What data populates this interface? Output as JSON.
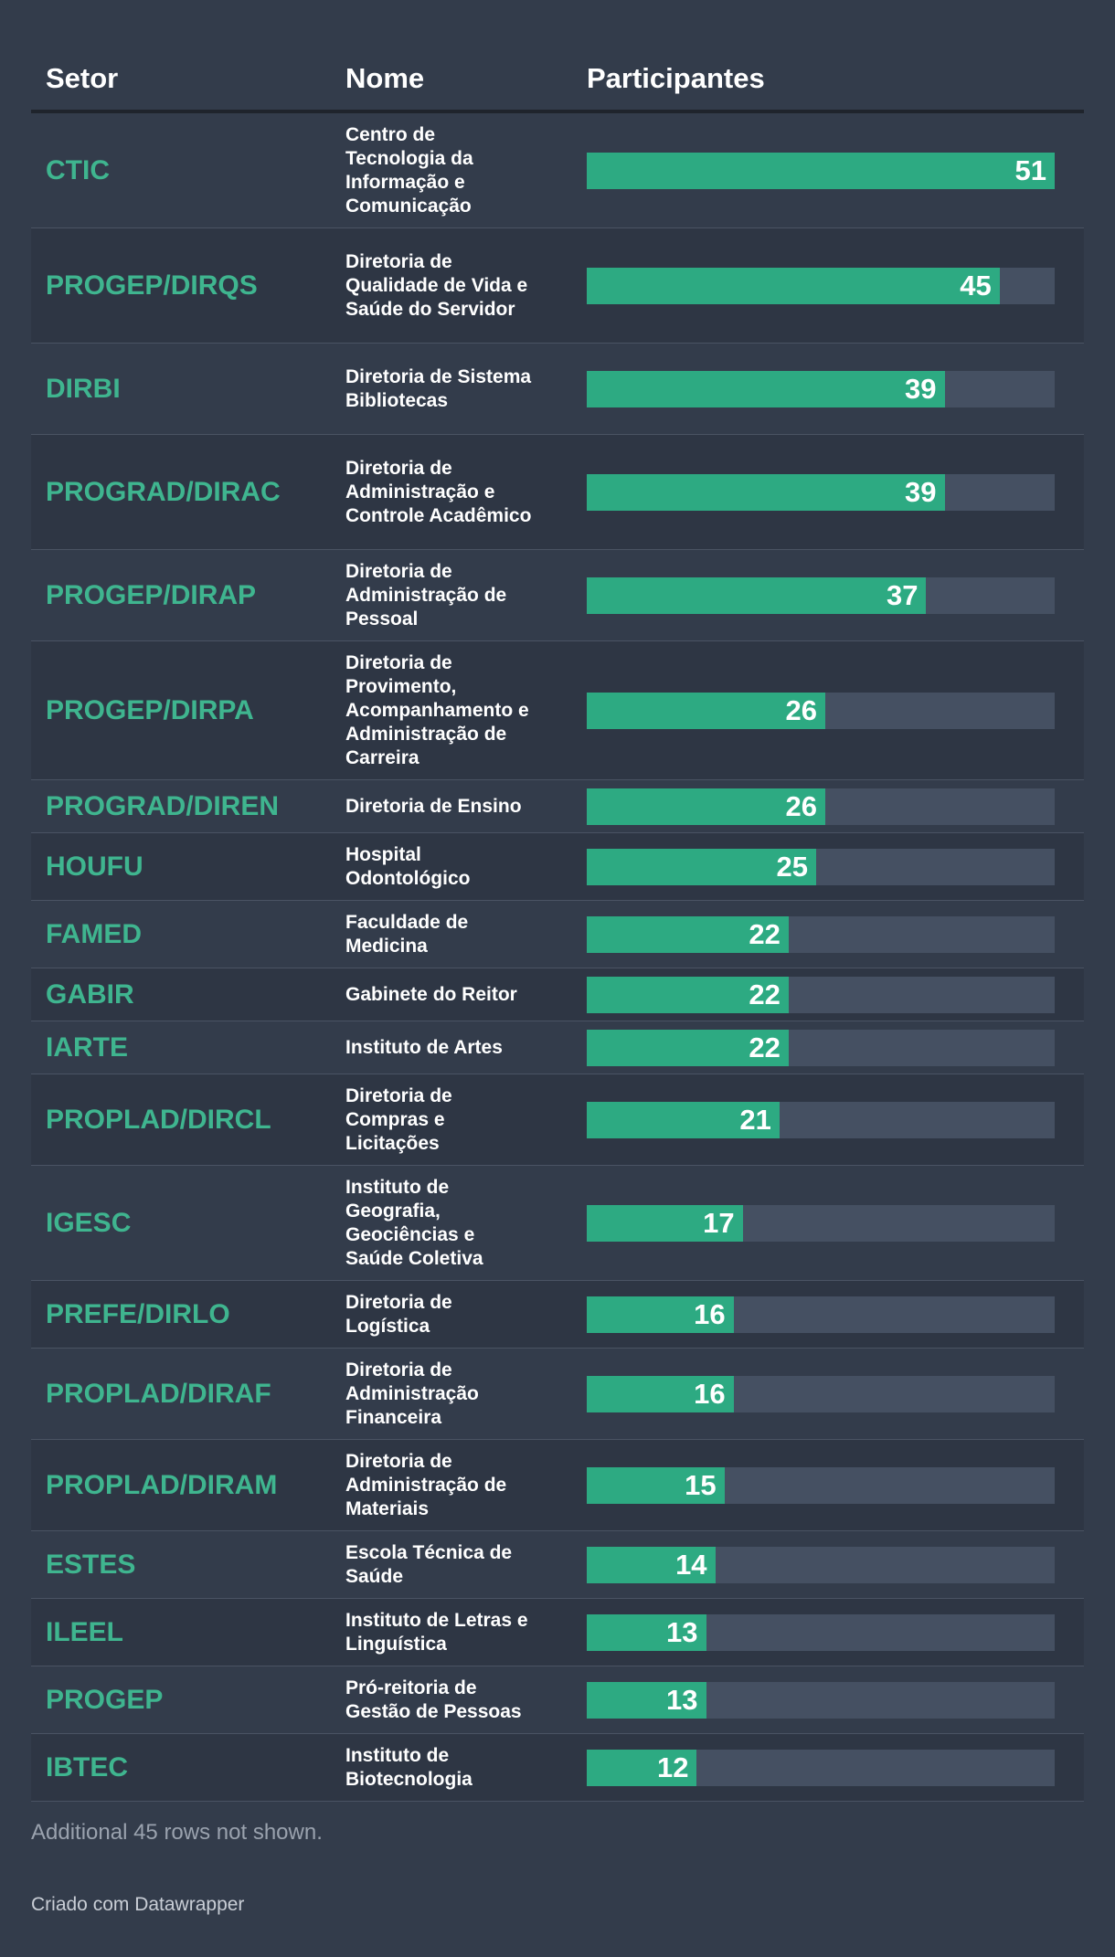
{
  "header": {
    "col_setor": "Setor",
    "col_nome": "Nome",
    "col_participantes": "Participantes"
  },
  "chart_data": {
    "type": "table",
    "columns": [
      "Setor",
      "Nome",
      "Participantes"
    ],
    "max": 51,
    "rows": [
      {
        "setor": "CTIC",
        "nome": "Centro de Tecnologia da Informação e Comunicação",
        "value": 51
      },
      {
        "setor": "PROGEP/DIRQS",
        "nome": "Diretoria de Qualidade de Vida e Saúde do Servidor",
        "value": 45
      },
      {
        "setor": "DIRBI",
        "nome": "Diretoria de Sistema Bibliotecas",
        "value": 39
      },
      {
        "setor": "PROGRAD/DIRAC",
        "nome": "Diretoria de Administração e Controle Acadêmico",
        "value": 39
      },
      {
        "setor": "PROGEP/DIRAP",
        "nome": "Diretoria de Administração de Pessoal",
        "value": 37
      },
      {
        "setor": "PROGEP/DIRPA",
        "nome": "Diretoria de Provimento, Acompanhamento e Administração de Carreira",
        "value": 26
      },
      {
        "setor": "PROGRAD/DIREN",
        "nome": "Diretoria de Ensino",
        "value": 26
      },
      {
        "setor": "HOUFU",
        "nome": "Hospital Odontológico",
        "value": 25
      },
      {
        "setor": "FAMED",
        "nome": "Faculdade de Medicina",
        "value": 22
      },
      {
        "setor": "GABIR",
        "nome": "Gabinete do Reitor",
        "value": 22
      },
      {
        "setor": "IARTE",
        "nome": "Instituto de Artes",
        "value": 22
      },
      {
        "setor": "PROPLAD/DIRCL",
        "nome": "Diretoria de Compras e Licitações",
        "value": 21
      },
      {
        "setor": "IGESC",
        "nome": "Instituto de Geografia, Geociências e Saúde Coletiva",
        "value": 17
      },
      {
        "setor": "PREFE/DIRLO",
        "nome": "Diretoria de Logística",
        "value": 16
      },
      {
        "setor": "PROPLAD/DIRAF",
        "nome": "Diretoria de Administração Financeira",
        "value": 16
      },
      {
        "setor": "PROPLAD/DIRAM",
        "nome": "Diretoria de Administração de Materiais",
        "value": 15
      },
      {
        "setor": "ESTES",
        "nome": "Escola Técnica de Saúde",
        "value": 14
      },
      {
        "setor": "ILEEL",
        "nome": "Instituto de Letras e Linguística",
        "value": 13
      },
      {
        "setor": "PROGEP",
        "nome": "Pró-reitoria de Gestão de Pessoas",
        "value": 13
      },
      {
        "setor": "IBTEC",
        "nome": "Instituto de Biotecnologia",
        "value": 12
      }
    ]
  },
  "footer": {
    "note": "Additional 45 rows not shown.",
    "credit": "Criado com Datawrapper"
  },
  "colors": {
    "background": "#333c4b",
    "accent": "#3fb58f",
    "bar": "#2daa82",
    "track": "#455062"
  }
}
